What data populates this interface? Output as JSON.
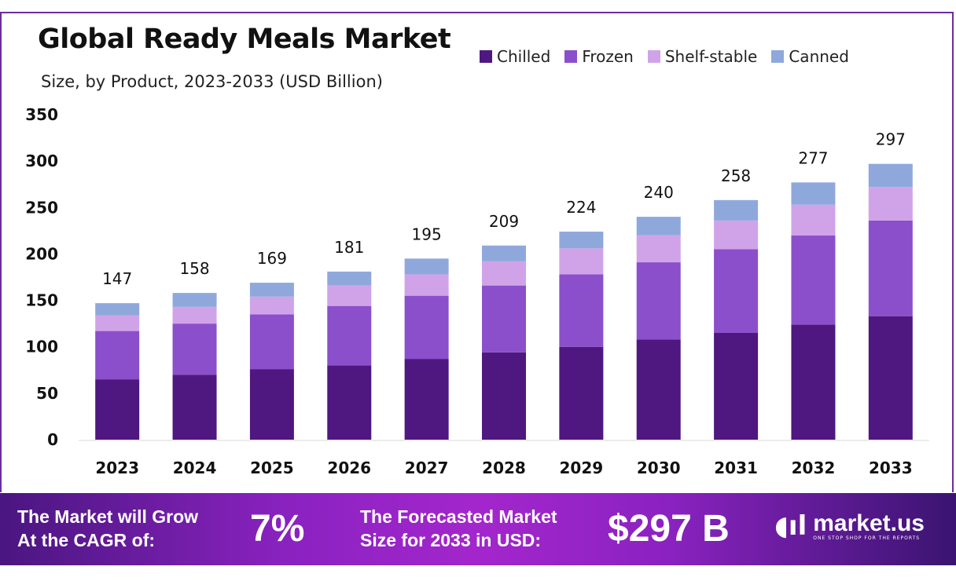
{
  "chart_data": {
    "type": "bar",
    "stacked": true,
    "title": "Global Ready Meals Market",
    "subtitle": "Size, by Product, 2023-2033 (USD Billion)",
    "xlabel": "",
    "ylabel": "",
    "ylim": [
      0,
      350
    ],
    "yticks": [
      0,
      50,
      100,
      150,
      200,
      250,
      300,
      350
    ],
    "grid": false,
    "legend_position": "top-right",
    "categories": [
      "2023",
      "2024",
      "2025",
      "2026",
      "2027",
      "2028",
      "2029",
      "2030",
      "2031",
      "2032",
      "2033"
    ],
    "series": [
      {
        "name": "Chilled",
        "color": "#4f1780",
        "values": [
          65,
          70,
          76,
          80,
          87,
          94,
          100,
          108,
          115,
          124,
          133
        ]
      },
      {
        "name": "Frozen",
        "color": "#8b4fcb",
        "values": [
          52,
          55,
          59,
          64,
          68,
          72,
          78,
          83,
          90,
          96,
          103
        ]
      },
      {
        "name": "Shelf-stable",
        "color": "#d0a3e8",
        "values": [
          17,
          18,
          19,
          22,
          23,
          26,
          28,
          29,
          31,
          33,
          36
        ]
      },
      {
        "name": "Canned",
        "color": "#8fa8dc",
        "values": [
          13,
          15,
          15,
          15,
          17,
          17,
          18,
          20,
          22,
          24,
          25
        ]
      }
    ],
    "totals": [
      147,
      158,
      169,
      181,
      195,
      209,
      224,
      240,
      258,
      277,
      297
    ]
  },
  "footer": {
    "cagr_label_1": "The Market will Grow",
    "cagr_label_2": "At the CAGR of:",
    "cagr_value": "7%",
    "forecast_label_1": "The Forecasted Market",
    "forecast_label_2": "Size for 2033 in USD:",
    "forecast_value": "$297 B",
    "brand": "market.us",
    "brand_tagline": "ONE STOP SHOP FOR THE REPORTS"
  }
}
